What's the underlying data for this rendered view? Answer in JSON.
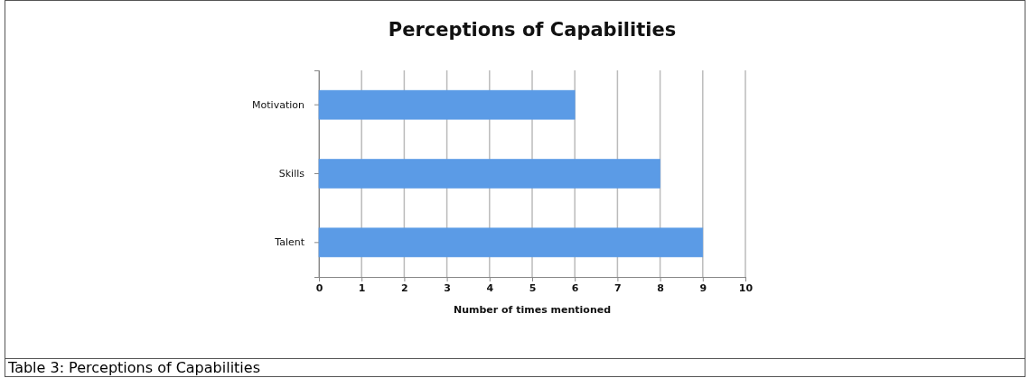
{
  "chart_data": {
    "type": "bar",
    "orientation": "horizontal",
    "title": "Perceptions of Capabilities",
    "xlabel": "Number of times mentioned",
    "categories": [
      "Motivation",
      "Skills",
      "Talent"
    ],
    "values": [
      6,
      8,
      9
    ],
    "color": "#5b9be6",
    "xlim": [
      0,
      10
    ],
    "xticks": [
      0,
      1,
      2,
      3,
      4,
      5,
      6,
      7,
      8,
      9,
      10
    ],
    "grid": "x",
    "annotations": [
      "Table 3: Perceptions of Capabilities"
    ]
  }
}
